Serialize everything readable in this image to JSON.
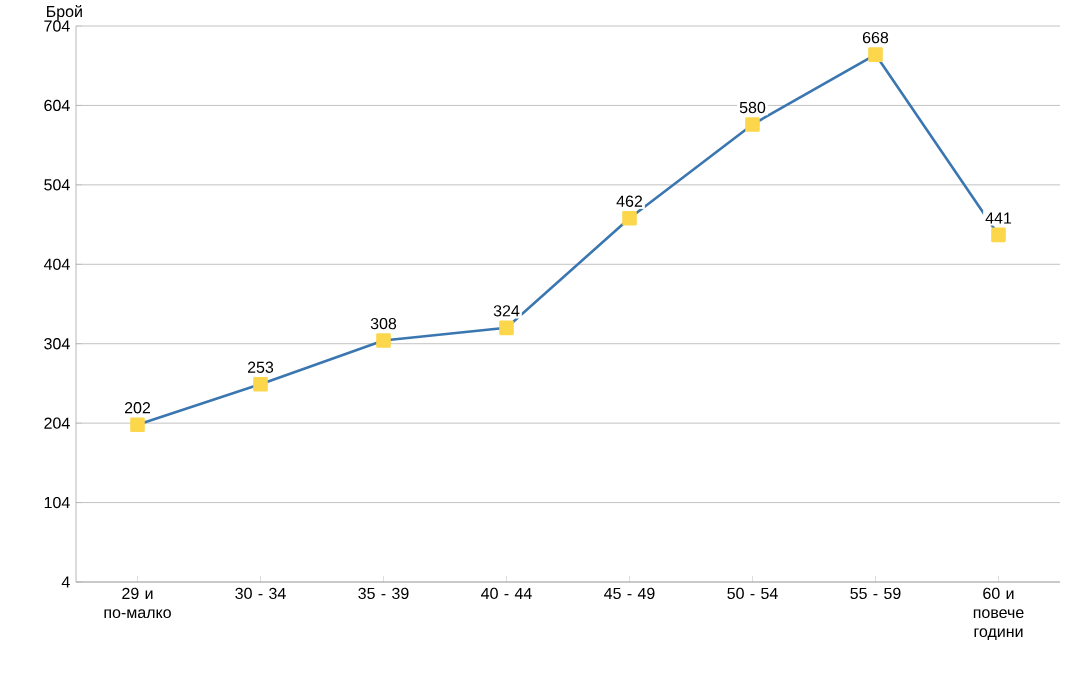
{
  "chart_data": {
    "type": "line",
    "ylabel": "Брой",
    "categories": [
      "29 и по-малко",
      "30 - 34",
      "35 - 39",
      "40 - 44",
      "45 - 49",
      "50 - 54",
      "55 - 59",
      "60 и повече години"
    ],
    "series": [
      {
        "color": "#3a76b0",
        "values": [
          202,
          253,
          308,
          324,
          462,
          580,
          668,
          441
        ]
      }
    ],
    "ylim": [
      4,
      704
    ],
    "yticks": [
      4,
      104,
      204,
      304,
      404,
      504,
      604,
      704
    ],
    "grid": "y",
    "marker": "square",
    "data_labels": true,
    "line_style": "solid"
  }
}
